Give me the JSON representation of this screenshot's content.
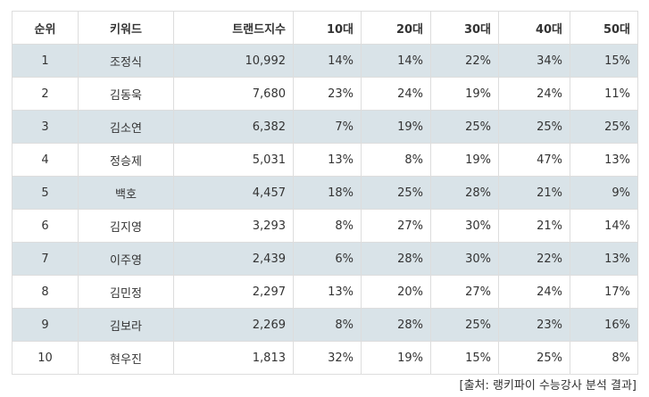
{
  "colors": {
    "header_bg": "#ffffff",
    "shaded_row_bg": "#d9e3e8",
    "highlight_text": "#e04a3f",
    "border": "#dddddd"
  },
  "headers": [
    "순위",
    "키워드",
    "트랜드지수",
    "10대",
    "20대",
    "30대",
    "40대",
    "50대"
  ],
  "rows": [
    {
      "rank": "1",
      "keyword": "조정식",
      "index": "10,992",
      "a10": "14%",
      "a20": "14%",
      "a30": "22%",
      "a40": "34%",
      "a50": "15%",
      "hl": [
        "a40"
      ]
    },
    {
      "rank": "2",
      "keyword": "김동욱",
      "index": "7,680",
      "a10": "23%",
      "a20": "24%",
      "a30": "19%",
      "a40": "24%",
      "a50": "11%",
      "hl": [
        "a20",
        "a40"
      ]
    },
    {
      "rank": "3",
      "keyword": "김소연",
      "index": "6,382",
      "a10": "7%",
      "a20": "19%",
      "a30": "25%",
      "a40": "25%",
      "a50": "25%",
      "hl": [
        "a30",
        "a40",
        "a50"
      ]
    },
    {
      "rank": "4",
      "keyword": "정승제",
      "index": "5,031",
      "a10": "13%",
      "a20": "8%",
      "a30": "19%",
      "a40": "47%",
      "a50": "13%",
      "hl": [
        "a40"
      ]
    },
    {
      "rank": "5",
      "keyword": "백호",
      "index": "4,457",
      "a10": "18%",
      "a20": "25%",
      "a30": "28%",
      "a40": "21%",
      "a50": "9%",
      "hl": [
        "a30"
      ]
    },
    {
      "rank": "6",
      "keyword": "김지영",
      "index": "3,293",
      "a10": "8%",
      "a20": "27%",
      "a30": "30%",
      "a40": "21%",
      "a50": "14%",
      "hl": [
        "a30"
      ]
    },
    {
      "rank": "7",
      "keyword": "이주영",
      "index": "2,439",
      "a10": "6%",
      "a20": "28%",
      "a30": "30%",
      "a40": "22%",
      "a50": "13%",
      "hl": [
        "a30"
      ]
    },
    {
      "rank": "8",
      "keyword": "김민정",
      "index": "2,297",
      "a10": "13%",
      "a20": "20%",
      "a30": "27%",
      "a40": "24%",
      "a50": "17%",
      "hl": [
        "a30"
      ]
    },
    {
      "rank": "9",
      "keyword": "김보라",
      "index": "2,269",
      "a10": "8%",
      "a20": "28%",
      "a30": "25%",
      "a40": "23%",
      "a50": "16%",
      "hl": [
        "a20"
      ]
    },
    {
      "rank": "10",
      "keyword": "현우진",
      "index": "1,813",
      "a10": "32%",
      "a20": "19%",
      "a30": "15%",
      "a40": "25%",
      "a50": "8%",
      "hl": [
        "a10"
      ]
    }
  ],
  "source": "[출처: 랭키파이 수능강사 분석 결과]"
}
